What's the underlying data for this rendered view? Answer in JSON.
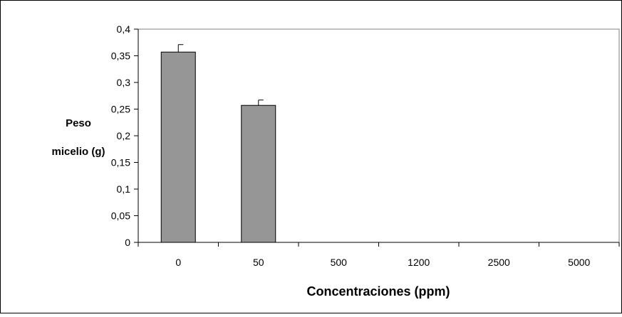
{
  "chart_data": {
    "type": "bar",
    "title": "",
    "xlabel": "Concentraciones (ppm)",
    "ylabel_lines": [
      "Peso",
      "micelio (g)"
    ],
    "categories": [
      "0",
      "50",
      "500",
      "1200",
      "2500",
      "5000"
    ],
    "values": [
      0.357,
      0.257,
      0,
      0,
      0,
      0
    ],
    "errors": [
      0.014,
      0.01,
      0,
      0,
      0,
      0
    ],
    "ylim": [
      0,
      0.4
    ],
    "yticks": [
      0,
      0.05,
      0.1,
      0.15,
      0.2,
      0.25,
      0.3,
      0.35,
      0.4
    ],
    "ytick_labels": [
      "0",
      "0,05",
      "0,1",
      "0,15",
      "0,2",
      "0,25",
      "0,3",
      "0,35",
      "0,4"
    ],
    "grid": false,
    "legend": "none",
    "colors": {
      "bar_fill": "#969696",
      "bar_stroke": "#000000",
      "axis": "#000000",
      "plot_border": "#808080",
      "frame": "#000000",
      "background": "#ffffff"
    }
  }
}
